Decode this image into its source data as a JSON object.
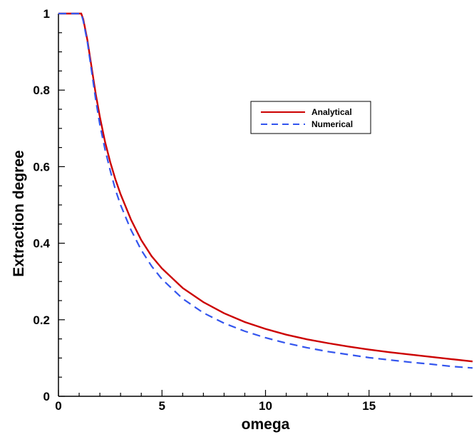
{
  "chart_data": {
    "type": "line",
    "title": "",
    "xlabel": "omega",
    "ylabel": "Extraction degree",
    "xlim": [
      0,
      20
    ],
    "ylim": [
      0,
      1
    ],
    "x_ticks": [
      0,
      5,
      10,
      15
    ],
    "y_ticks": [
      0,
      0.2,
      0.4,
      0.6,
      0.8,
      1
    ],
    "x_tick_labels": [
      "0",
      "5",
      "10",
      "15"
    ],
    "y_tick_labels": [
      "0",
      "0.2",
      "0.4",
      "0.6",
      "0.8",
      "1"
    ],
    "grid": false,
    "legend_position": "top-right",
    "series": [
      {
        "name": "Analytical",
        "color": "#cc0000",
        "style": "solid",
        "x": [
          0,
          1.1,
          1.2,
          1.4,
          1.6,
          1.8,
          2,
          2.25,
          2.5,
          2.75,
          3,
          3.5,
          4,
          4.5,
          5,
          6,
          7,
          8,
          9,
          10,
          11,
          12,
          13,
          14,
          15,
          16,
          17,
          18,
          19,
          20
        ],
        "y": [
          1.0,
          1.0,
          0.985,
          0.93,
          0.86,
          0.79,
          0.73,
          0.665,
          0.612,
          0.567,
          0.528,
          0.462,
          0.408,
          0.366,
          0.334,
          0.283,
          0.246,
          0.217,
          0.194,
          0.176,
          0.161,
          0.149,
          0.139,
          0.13,
          0.122,
          0.115,
          0.109,
          0.103,
          0.097,
          0.091
        ]
      },
      {
        "name": "Numerical",
        "color": "#3355ee",
        "style": "dashed",
        "x": [
          0,
          1.1,
          1.2,
          1.4,
          1.6,
          1.8,
          2,
          2.25,
          2.5,
          2.75,
          3,
          3.5,
          4,
          4.5,
          5,
          6,
          7,
          8,
          9,
          10,
          11,
          12,
          13,
          14,
          15,
          16,
          17,
          18,
          19,
          20
        ],
        "y": [
          1.0,
          1.0,
          0.98,
          0.925,
          0.85,
          0.775,
          0.71,
          0.645,
          0.59,
          0.54,
          0.5,
          0.435,
          0.382,
          0.34,
          0.306,
          0.255,
          0.218,
          0.191,
          0.17,
          0.153,
          0.139,
          0.127,
          0.117,
          0.109,
          0.101,
          0.095,
          0.089,
          0.084,
          0.078,
          0.074
        ]
      }
    ]
  }
}
